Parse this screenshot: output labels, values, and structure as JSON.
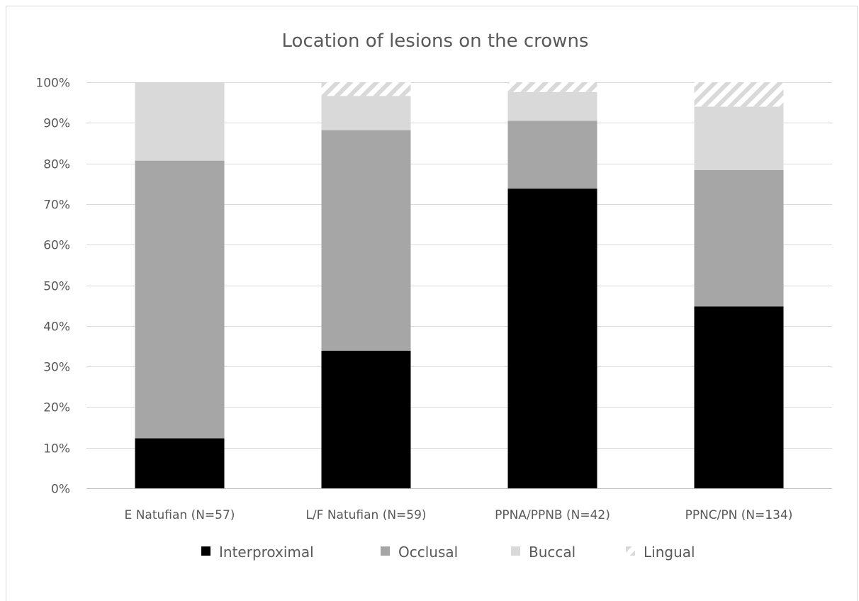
{
  "chart_data": {
    "type": "bar",
    "stacked": true,
    "percent": true,
    "title": "Location of lesions on the crowns",
    "xlabel": "",
    "ylabel": "",
    "ylim": [
      0,
      100
    ],
    "y_ticks": [
      "0%",
      "10%",
      "20%",
      "30%",
      "40%",
      "50%",
      "60%",
      "70%",
      "80%",
      "90%",
      "100%"
    ],
    "grid": true,
    "legend_position": "bottom",
    "categories": [
      "E Natufian (N=57)",
      "L/F Natufian (N=59)",
      "PPNA/PPNB (N=42)",
      "PPNC/PN (N=134)"
    ],
    "series": [
      {
        "name": "Interproximal",
        "color": "#000000",
        "pattern": "solid",
        "values": [
          12.3,
          33.9,
          73.8,
          44.8
        ]
      },
      {
        "name": "Occlusal",
        "color": "#a6a6a6",
        "pattern": "solid",
        "values": [
          68.4,
          54.3,
          16.7,
          33.6
        ]
      },
      {
        "name": "Buccal",
        "color": "#d9d9d9",
        "pattern": "solid",
        "values": [
          19.3,
          8.4,
          7.1,
          15.6
        ]
      },
      {
        "name": "Lingual",
        "color": "#d9d9d9",
        "pattern": "diagonal-stripes",
        "values": [
          0,
          3.4,
          2.4,
          6.0
        ]
      }
    ]
  }
}
